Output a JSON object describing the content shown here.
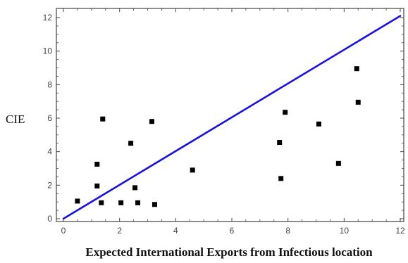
{
  "chart_data": {
    "type": "scatter",
    "xlabel": "Expected International Exports from Infectious location",
    "ylabel": "CIE",
    "xlim": [
      0,
      12
    ],
    "ylim": [
      0,
      12
    ],
    "x_ticks": [
      0,
      2,
      4,
      6,
      8,
      10,
      12
    ],
    "y_ticks": [
      0,
      2,
      4,
      6,
      8,
      10,
      12
    ],
    "grid": false,
    "legend": "none",
    "points": [
      {
        "x": 0.5,
        "y": 1.05
      },
      {
        "x": 1.2,
        "y": 1.95
      },
      {
        "x": 1.2,
        "y": 3.25
      },
      {
        "x": 1.35,
        "y": 0.95
      },
      {
        "x": 1.4,
        "y": 5.95
      },
      {
        "x": 2.05,
        "y": 0.95
      },
      {
        "x": 2.4,
        "y": 4.5
      },
      {
        "x": 2.55,
        "y": 1.85
      },
      {
        "x": 2.65,
        "y": 0.95
      },
      {
        "x": 3.15,
        "y": 5.8
      },
      {
        "x": 3.25,
        "y": 0.85
      },
      {
        "x": 4.6,
        "y": 2.9
      },
      {
        "x": 7.7,
        "y": 4.55
      },
      {
        "x": 7.75,
        "y": 2.4
      },
      {
        "x": 7.9,
        "y": 6.35
      },
      {
        "x": 9.1,
        "y": 5.65
      },
      {
        "x": 9.8,
        "y": 3.3
      },
      {
        "x": 10.45,
        "y": 8.95
      },
      {
        "x": 10.5,
        "y": 6.95
      }
    ],
    "line": {
      "x": [
        0,
        12
      ],
      "y": [
        0,
        12.1
      ]
    },
    "colors": {
      "points": "#000000",
      "line": "#1a14d6",
      "frame": "#444444"
    }
  }
}
